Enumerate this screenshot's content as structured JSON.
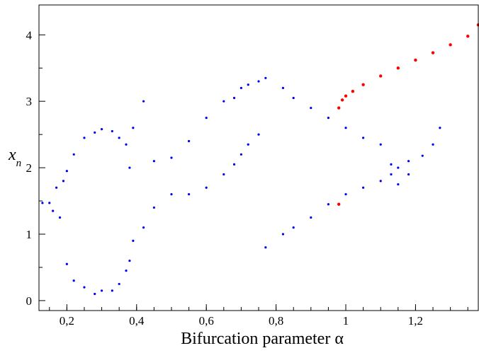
{
  "chart_data": {
    "type": "scatter",
    "title": "",
    "xlabel": "Bifurcation parameter α",
    "ylabel_main": "x",
    "ylabel_sub": "n",
    "xlim": [
      0.12,
      1.38
    ],
    "ylim": [
      -0.15,
      4.45
    ],
    "x_ticks": [
      {
        "v": 0.2,
        "label": "0,2"
      },
      {
        "v": 0.4,
        "label": "0,4"
      },
      {
        "v": 0.6,
        "label": "0,6"
      },
      {
        "v": 0.8,
        "label": "0,8"
      },
      {
        "v": 1.0,
        "label": "1"
      },
      {
        "v": 1.2,
        "label": "1,2"
      }
    ],
    "y_ticks": [
      {
        "v": 0,
        "label": "0"
      },
      {
        "v": 1,
        "label": "1"
      },
      {
        "v": 2,
        "label": "2"
      },
      {
        "v": 3,
        "label": "3"
      },
      {
        "v": 4,
        "label": "4"
      }
    ],
    "grid": false,
    "legend": "none",
    "series": [
      {
        "color": "#0000ee",
        "description": "bifurcation diagram points",
        "x": [
          0.13,
          0.15,
          0.16,
          0.17,
          0.18,
          0.19,
          0.2,
          0.2,
          0.22,
          0.22,
          0.25,
          0.25,
          0.28,
          0.28,
          0.3,
          0.3,
          0.33,
          0.33,
          0.35,
          0.35,
          0.37,
          0.37,
          0.38,
          0.38,
          0.39,
          0.39,
          0.42,
          0.42,
          0.45,
          0.45,
          0.5,
          0.5,
          0.55,
          0.55,
          0.6,
          0.6,
          0.65,
          0.65,
          0.68,
          0.68,
          0.7,
          0.7,
          0.72,
          0.72,
          0.75,
          0.75,
          0.77,
          0.77,
          0.82,
          0.82,
          0.85,
          0.85,
          0.9,
          0.9,
          0.95,
          0.95,
          1.0,
          1.0,
          1.05,
          1.05,
          1.1,
          1.1,
          1.13,
          1.13,
          1.15,
          1.15,
          1.18,
          1.18,
          1.22,
          1.25,
          1.27
        ],
        "y": [
          1.47,
          1.47,
          1.35,
          1.7,
          1.25,
          1.8,
          1.95,
          0.55,
          0.3,
          2.2,
          0.2,
          2.45,
          0.1,
          2.53,
          0.15,
          2.58,
          0.15,
          2.55,
          0.25,
          2.45,
          0.45,
          2.35,
          0.6,
          2.0,
          0.9,
          2.6,
          1.1,
          3.0,
          1.4,
          2.1,
          1.6,
          2.15,
          1.6,
          2.4,
          1.7,
          2.75,
          1.9,
          3.0,
          2.05,
          3.05,
          2.2,
          3.2,
          2.35,
          3.25,
          2.5,
          3.3,
          0.8,
          3.35,
          1.0,
          3.2,
          1.1,
          3.05,
          1.25,
          2.9,
          1.45,
          2.75,
          1.6,
          2.6,
          1.7,
          2.45,
          1.8,
          2.35,
          1.9,
          2.05,
          2.0,
          1.75,
          2.1,
          1.9,
          2.18,
          2.35,
          2.6
        ]
      },
      {
        "color": "#ff0000",
        "description": "red branch",
        "x": [
          0.98,
          0.98,
          0.99,
          1.0,
          1.02,
          1.05,
          1.1,
          1.15,
          1.2,
          1.25,
          1.3,
          1.35,
          1.38
        ],
        "y": [
          1.45,
          2.9,
          3.02,
          3.08,
          3.15,
          3.25,
          3.38,
          3.5,
          3.62,
          3.73,
          3.85,
          3.98,
          4.15
        ]
      }
    ]
  }
}
